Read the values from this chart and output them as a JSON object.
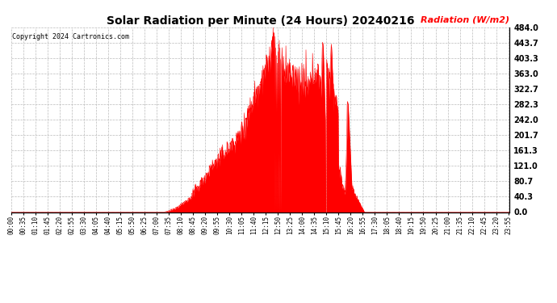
{
  "title": "Solar Radiation per Minute (24 Hours) 20240216",
  "ylabel": "Radiation (W/m2)",
  "copyright": "Copyright 2024 Cartronics.com",
  "ylabel_color": "#ff0000",
  "copyright_color": "#000000",
  "fill_color": "#ff0000",
  "line_color": "#ff0000",
  "background_color": "#ffffff",
  "grid_color": "#bbbbbb",
  "zero_line_color": "#ff0000",
  "ylim": [
    0.0,
    484.0
  ],
  "yticks": [
    0.0,
    40.3,
    80.7,
    121.0,
    161.3,
    201.7,
    242.0,
    282.3,
    322.7,
    363.0,
    403.3,
    443.7,
    484.0
  ],
  "total_minutes": 1440,
  "xtick_labels": [
    "00:00",
    "00:35",
    "01:10",
    "01:45",
    "02:20",
    "02:55",
    "03:30",
    "04:05",
    "04:40",
    "05:15",
    "05:50",
    "06:25",
    "07:00",
    "07:35",
    "08:10",
    "08:45",
    "09:20",
    "09:55",
    "10:30",
    "11:05",
    "11:40",
    "12:15",
    "12:50",
    "13:25",
    "14:00",
    "14:35",
    "15:10",
    "15:45",
    "16:20",
    "16:55",
    "17:30",
    "18:05",
    "18:40",
    "19:15",
    "19:50",
    "20:25",
    "21:00",
    "21:35",
    "22:10",
    "22:45",
    "23:20",
    "23:55"
  ],
  "xtick_positions": [
    0,
    35,
    70,
    105,
    140,
    175,
    210,
    245,
    280,
    315,
    350,
    385,
    420,
    455,
    490,
    525,
    560,
    595,
    630,
    665,
    700,
    735,
    770,
    805,
    840,
    875,
    910,
    945,
    980,
    1015,
    1050,
    1085,
    1120,
    1155,
    1190,
    1225,
    1260,
    1295,
    1330,
    1365,
    1400,
    1435
  ]
}
